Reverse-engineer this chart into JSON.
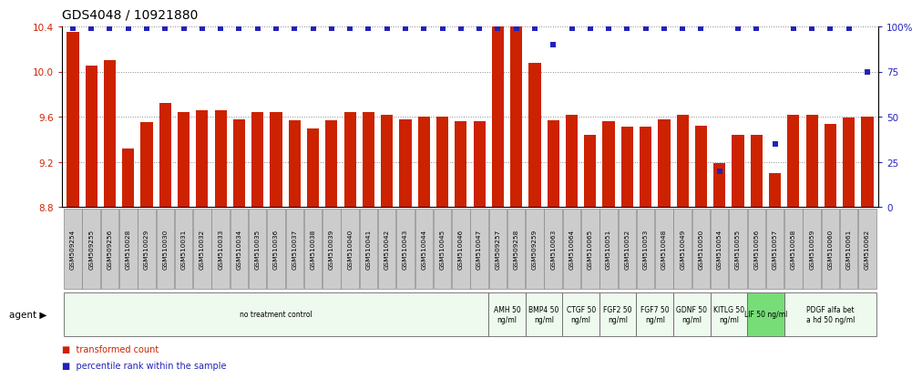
{
  "title": "GDS4048 / 10921880",
  "samples": [
    "GSM509254",
    "GSM509255",
    "GSM509256",
    "GSM510028",
    "GSM510029",
    "GSM510030",
    "GSM510031",
    "GSM510032",
    "GSM510033",
    "GSM510034",
    "GSM510035",
    "GSM510036",
    "GSM510037",
    "GSM510038",
    "GSM510039",
    "GSM510040",
    "GSM510041",
    "GSM510042",
    "GSM510043",
    "GSM510044",
    "GSM510045",
    "GSM510046",
    "GSM510047",
    "GSM509257",
    "GSM509258",
    "GSM509259",
    "GSM510063",
    "GSM510064",
    "GSM510065",
    "GSM510051",
    "GSM510052",
    "GSM510053",
    "GSM510048",
    "GSM510049",
    "GSM510050",
    "GSM510054",
    "GSM510055",
    "GSM510056",
    "GSM510057",
    "GSM510058",
    "GSM510059",
    "GSM510060",
    "GSM510061",
    "GSM510062"
  ],
  "bar_values": [
    10.35,
    10.05,
    10.1,
    9.32,
    9.55,
    9.72,
    9.64,
    9.66,
    9.66,
    9.58,
    9.64,
    9.64,
    9.57,
    9.5,
    9.57,
    9.64,
    9.64,
    9.62,
    9.58,
    9.6,
    9.6,
    9.56,
    9.56,
    10.5,
    10.5,
    10.08,
    9.57,
    9.62,
    9.44,
    9.56,
    9.51,
    9.51,
    9.58,
    9.62,
    9.52,
    9.19,
    9.44,
    9.44,
    9.1,
    9.62,
    9.62,
    9.54,
    9.59,
    9.6
  ],
  "percentile_values": [
    99,
    99,
    99,
    99,
    99,
    99,
    99,
    99,
    99,
    99,
    99,
    99,
    99,
    99,
    99,
    99,
    99,
    99,
    99,
    99,
    99,
    99,
    99,
    99,
    99,
    99,
    90,
    99,
    99,
    99,
    99,
    99,
    99,
    99,
    99,
    20,
    99,
    99,
    35,
    99,
    99,
    99,
    99,
    75
  ],
  "agents": [
    {
      "label": "no treatment control",
      "start": 0,
      "end": 23,
      "color": "#eefaee",
      "outline": "#aaaaaa"
    },
    {
      "label": "AMH 50\nng/ml",
      "start": 23,
      "end": 25,
      "color": "#eefaee",
      "outline": "#aaaaaa"
    },
    {
      "label": "BMP4 50\nng/ml",
      "start": 25,
      "end": 27,
      "color": "#eefaee",
      "outline": "#aaaaaa"
    },
    {
      "label": "CTGF 50\nng/ml",
      "start": 27,
      "end": 29,
      "color": "#eefaee",
      "outline": "#aaaaaa"
    },
    {
      "label": "FGF2 50\nng/ml",
      "start": 29,
      "end": 31,
      "color": "#eefaee",
      "outline": "#aaaaaa"
    },
    {
      "label": "FGF7 50\nng/ml",
      "start": 31,
      "end": 33,
      "color": "#eefaee",
      "outline": "#aaaaaa"
    },
    {
      "label": "GDNF 50\nng/ml",
      "start": 33,
      "end": 35,
      "color": "#eefaee",
      "outline": "#aaaaaa"
    },
    {
      "label": "KITLG 50\nng/ml",
      "start": 35,
      "end": 37,
      "color": "#eefaee",
      "outline": "#aaaaaa"
    },
    {
      "label": "LIF 50 ng/ml",
      "start": 37,
      "end": 39,
      "color": "#77dd77",
      "outline": "#aaaaaa"
    },
    {
      "label": "PDGF alfa bet\na hd 50 ng/ml",
      "start": 39,
      "end": 44,
      "color": "#eefaee",
      "outline": "#aaaaaa"
    }
  ],
  "ylim": [
    8.8,
    10.4
  ],
  "yticks": [
    8.8,
    9.2,
    9.6,
    10.0,
    10.4
  ],
  "y2lim": [
    0,
    100
  ],
  "y2ticks": [
    0,
    25,
    50,
    75,
    100
  ],
  "bar_color": "#cc2200",
  "dot_color": "#2222bb",
  "bar_baseline": 8.8,
  "grid_color": "#888888",
  "sample_box_color": "#cccccc",
  "sample_box_edge": "#888888"
}
